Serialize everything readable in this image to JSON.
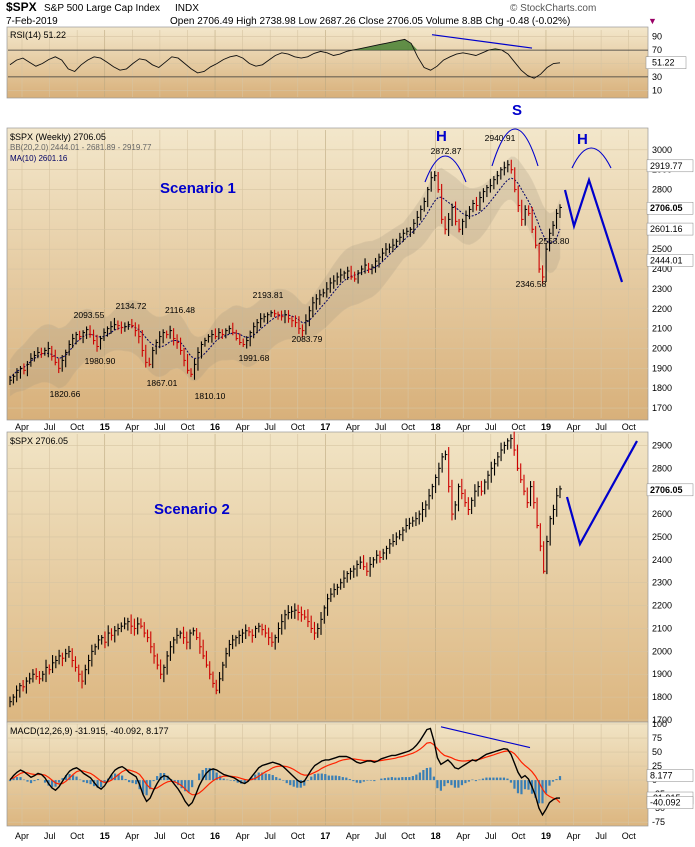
{
  "header": {
    "symbol": "$SPX",
    "name": "S&P 500 Large Cap Index",
    "exchange": "INDX",
    "date": "7-Feb-2019",
    "ohlc_text": "Open 2706.49  High 2738.98  Low 2687.26  Close 2706.05  Volume 8.8B  Chg -0.48 (-0.02%)",
    "brand": "© StockCharts.com"
  },
  "colors": {
    "price_up": "#000000",
    "price_down": "#cc0000",
    "annotation": "#0000cc",
    "bg_top": "#efe2c3",
    "bg_bottom": "#d9b27a",
    "rsi_fill": "#3d7a2a",
    "macd_signal": "#ff2200",
    "histogram": "#3a7fb5"
  },
  "time_axis_labels": [
    "Apr",
    "Jul",
    "Oct",
    "15",
    "Apr",
    "Jul",
    "Oct",
    "16",
    "Apr",
    "Jul",
    "Oct",
    "17",
    "Apr",
    "Jul",
    "Oct",
    "18",
    "Apr",
    "Jul",
    "Oct",
    "19",
    "Apr",
    "Jul",
    "Oct"
  ],
  "chart_data": [
    {
      "type": "line",
      "panel": "rsi",
      "title": "RSI(14) 51.22",
      "ylim": [
        0,
        100
      ],
      "y_ticks": [
        "90",
        "70",
        "50",
        "30",
        "10"
      ],
      "current_value_label": "51.22",
      "series": [
        {
          "name": "RSI(14)",
          "values": [
            48,
            55,
            58,
            52,
            46,
            50,
            56,
            60,
            55,
            42,
            38,
            48,
            55,
            60,
            58,
            52,
            45,
            40,
            42,
            50,
            57,
            55,
            48,
            44,
            52,
            60,
            58,
            50,
            42,
            36,
            38,
            45,
            50,
            56,
            60,
            62,
            58,
            50,
            46,
            48,
            55,
            62,
            66,
            64,
            60,
            58,
            60,
            65,
            68,
            66,
            62,
            64,
            68,
            70,
            72,
            74,
            76,
            78,
            80,
            82,
            84,
            86,
            80,
            60,
            44,
            40,
            46,
            55,
            60,
            64,
            66,
            64,
            62,
            66,
            70,
            72,
            70,
            64,
            52,
            40,
            32,
            28,
            34,
            44,
            50,
            51
          ]
        }
      ]
    },
    {
      "type": "line",
      "panel": "scenario-1",
      "title": "$SPX (Weekly) 2706.05",
      "legend": [
        "$SPX (Weekly) 2706.05",
        "BB(20,2.0) 2444.01 - 2681.89 - 2919.77",
        "MA(10) 2601.16"
      ],
      "ylim": [
        1650,
        3100
      ],
      "y_ticks": [
        "3000",
        "2900",
        "2800",
        "2700",
        "2600",
        "2500",
        "2400",
        "2300",
        "2200",
        "2100",
        "2000",
        "1900",
        "1800",
        "1700"
      ],
      "right_labels": [
        "2919.77",
        "2706.05",
        "2601.16",
        "2444.01"
      ],
      "annotations": [
        {
          "text": "Scenario 1",
          "kind": "title"
        },
        {
          "text": "H",
          "kind": "pattern"
        },
        {
          "text": "S",
          "kind": "pattern"
        },
        {
          "text": "H",
          "kind": "pattern"
        },
        {
          "text": "2872.87",
          "kind": "price"
        },
        {
          "text": "2940.91",
          "kind": "price"
        },
        {
          "text": "2553.80",
          "kind": "price"
        },
        {
          "text": "2346.58",
          "kind": "price"
        },
        {
          "text": "2093.55",
          "kind": "price"
        },
        {
          "text": "2134.72",
          "kind": "price"
        },
        {
          "text": "2116.48",
          "kind": "price"
        },
        {
          "text": "2193.81",
          "kind": "price"
        },
        {
          "text": "1980.90",
          "kind": "price"
        },
        {
          "text": "1820.66",
          "kind": "price"
        },
        {
          "text": "1867.01",
          "kind": "price"
        },
        {
          "text": "1810.10",
          "kind": "price"
        },
        {
          "text": "1991.68",
          "kind": "price"
        },
        {
          "text": "2083.79",
          "kind": "price"
        }
      ],
      "series": [
        {
          "name": "$SPX (Weekly)",
          "values": [
            1840,
            1860,
            1880,
            1900,
            1890,
            1920,
            1950,
            1965,
            1980,
            1975,
            1990,
            2000,
            1960,
            1930,
            1900,
            1940,
            1980,
            2020,
            2050,
            2070,
            2060,
            2080,
            2095,
            2070,
            2040,
            2010,
            2050,
            2080,
            2100,
            2110,
            2120,
            2115,
            2105,
            2110,
            2120,
            2115,
            2090,
            2060,
            1990,
            1930,
            1920,
            1990,
            2030,
            2060,
            2080,
            2070,
            2090,
            2050,
            2030,
            1990,
            1940,
            1890,
            1870,
            1920,
            1980,
            2020,
            2040,
            2060,
            2070,
            2060,
            2080,
            2070,
            2090,
            2100,
            2080,
            2050,
            2030,
            2020,
            2040,
            2080,
            2110,
            2130,
            2150,
            2160,
            2170,
            2180,
            2175,
            2170,
            2160,
            2170,
            2150,
            2140,
            2130,
            2100,
            2090,
            2140,
            2190,
            2230,
            2250,
            2270,
            2280,
            2300,
            2330,
            2340,
            2360,
            2370,
            2380,
            2390,
            2360,
            2350,
            2380,
            2400,
            2420,
            2400,
            2410,
            2440,
            2460,
            2480,
            2500,
            2510,
            2520,
            2540,
            2560,
            2580,
            2590,
            2600,
            2630,
            2660,
            2700,
            2740,
            2800,
            2860,
            2870,
            2800,
            2650,
            2600,
            2650,
            2710,
            2640,
            2600,
            2640,
            2670,
            2700,
            2730,
            2720,
            2760,
            2790,
            2810,
            2820,
            2850,
            2870,
            2900,
            2910,
            2925,
            2900,
            2800,
            2720,
            2650,
            2700,
            2680,
            2600,
            2520,
            2400,
            2360,
            2500,
            2580,
            2620,
            2680,
            2710
          ]
        },
        {
          "name": "MA(10)",
          "values": [
            1850,
            1870,
            1885,
            1895,
            1905,
            1920,
            1935,
            1950,
            1960,
            1970,
            1975,
            1975,
            1970,
            1960,
            1950,
            1955,
            1965,
            1985,
            2010,
            2030,
            2045,
            2060,
            2070,
            2072,
            2068,
            2060,
            2058,
            2060,
            2068,
            2080,
            2092,
            2100,
            2105,
            2108,
            2112,
            2112,
            2105,
            2095,
            2075,
            2055,
            2035,
            2020,
            2010,
            2008,
            2012,
            2020,
            2035,
            2040,
            2040,
            2030,
            2010,
            1985,
            1960,
            1950,
            1950,
            1960,
            1975,
            1995,
            2015,
            2035,
            2050,
            2060,
            2065,
            2072,
            2078,
            2078,
            2072,
            2062,
            2055,
            2058,
            2068,
            2082,
            2098,
            2112,
            2128,
            2142,
            2155,
            2163,
            2167,
            2170,
            2168,
            2163,
            2155,
            2143,
            2130,
            2130,
            2142,
            2160,
            2180,
            2200,
            2220,
            2240,
            2262,
            2284,
            2305,
            2325,
            2342,
            2355,
            2364,
            2370,
            2375,
            2382,
            2390,
            2395,
            2400,
            2410,
            2422,
            2438,
            2455,
            2472,
            2490,
            2508,
            2525,
            2542,
            2560,
            2575,
            2592,
            2612,
            2632,
            2656,
            2684,
            2714,
            2742,
            2760,
            2762,
            2748,
            2735,
            2722,
            2710,
            2695,
            2680,
            2670,
            2665,
            2668,
            2675,
            2685,
            2700,
            2718,
            2740,
            2762,
            2785,
            2808,
            2830,
            2850,
            2858,
            2850,
            2830,
            2800,
            2770,
            2740,
            2705,
            2665,
            2620,
            2575,
            2545,
            2530,
            2535,
            2555,
            2601
          ]
        }
      ]
    },
    {
      "type": "line",
      "panel": "scenario-2",
      "title": "$SPX 2706.05",
      "ylim": [
        1700,
        2950
      ],
      "y_ticks": [
        "2900",
        "2800",
        "2700",
        "2600",
        "2500",
        "2400",
        "2300",
        "2200",
        "2100",
        "2000",
        "1900",
        "1800",
        "1700"
      ],
      "right_labels": [
        "2706.05"
      ],
      "annotations": [
        {
          "text": "Scenario 2",
          "kind": "title"
        }
      ],
      "series": [
        {
          "name": "$SPX",
          "values": [
            1780,
            1800,
            1830,
            1850,
            1845,
            1870,
            1880,
            1900,
            1890,
            1880,
            1900,
            1930,
            1920,
            1950,
            1960,
            1980,
            1970,
            1990,
            2000,
            1960,
            1930,
            1900,
            1870,
            1920,
            1960,
            2000,
            2020,
            2050,
            2060,
            2040,
            2080,
            2070,
            2090,
            2100,
            2110,
            2120,
            2130,
            2110,
            2100,
            2120,
            2110,
            2080,
            2060,
            2020,
            1980,
            1940,
            1900,
            1930,
            1980,
            2020,
            2050,
            2070,
            2080,
            2060,
            2040,
            2080,
            2090,
            2060,
            2020,
            1980,
            1940,
            1900,
            1860,
            1830,
            1880,
            1940,
            1990,
            2030,
            2050,
            2060,
            2070,
            2080,
            2090,
            2085,
            2070,
            2100,
            2110,
            2095,
            2080,
            2060,
            2040,
            2060,
            2100,
            2130,
            2160,
            2170,
            2175,
            2180,
            2170,
            2160,
            2150,
            2130,
            2100,
            2080,
            2100,
            2140,
            2190,
            2230,
            2250,
            2270,
            2280,
            2300,
            2320,
            2340,
            2350,
            2360,
            2380,
            2390,
            2370,
            2350,
            2380,
            2400,
            2420,
            2410,
            2430,
            2450,
            2470,
            2480,
            2500,
            2510,
            2530,
            2550,
            2560,
            2570,
            2580,
            2600,
            2620,
            2640,
            2680,
            2720,
            2760,
            2800,
            2850,
            2860,
            2720,
            2600,
            2640,
            2720,
            2690,
            2650,
            2620,
            2660,
            2700,
            2720,
            2700,
            2740,
            2770,
            2800,
            2820,
            2850,
            2880,
            2900,
            2920,
            2930,
            2880,
            2800,
            2750,
            2700,
            2650,
            2720,
            2650,
            2550,
            2460,
            2350,
            2480,
            2580,
            2620,
            2680,
            2710
          ]
        }
      ]
    },
    {
      "type": "line",
      "panel": "macd",
      "title": "MACD(12,26,9) -31.915, -40.092, 8.177",
      "ylim": [
        -80,
        100
      ],
      "y_ticks": [
        "100",
        "75",
        "50",
        "25",
        "0",
        "-25",
        "-50",
        "-75"
      ],
      "right_labels": [
        "8.177",
        "-31.915",
        "-40.092"
      ],
      "series": [
        {
          "name": "MACD",
          "values": [
            0,
            8,
            14,
            18,
            15,
            10,
            5,
            8,
            12,
            10,
            4,
            -6,
            -14,
            -18,
            -12,
            -2,
            8,
            16,
            20,
            22,
            18,
            12,
            8,
            4,
            -4,
            -12,
            -16,
            -10,
            0,
            10,
            18,
            22,
            24,
            20,
            14,
            10,
            6,
            -8,
            -26,
            -38,
            -32,
            -18,
            -6,
            4,
            8,
            6,
            0,
            -8,
            -16,
            -26,
            -38,
            -46,
            -40,
            -26,
            -10,
            2,
            12,
            18,
            20,
            18,
            14,
            10,
            8,
            6,
            4,
            0,
            -4,
            -6,
            -2,
            6,
            14,
            22,
            26,
            28,
            30,
            32,
            30,
            28,
            24,
            18,
            12,
            6,
            0,
            -4,
            -2,
            8,
            18,
            26,
            30,
            34,
            36,
            36,
            38,
            40,
            42,
            42,
            42,
            40,
            36,
            32,
            30,
            32,
            34,
            34,
            32,
            34,
            38,
            40,
            42,
            44,
            44,
            46,
            48,
            50,
            52,
            56,
            62,
            70,
            80,
            90,
            92,
            70,
            40,
            28,
            32,
            36,
            30,
            22,
            20,
            24,
            28,
            32,
            36,
            34,
            38,
            42,
            46,
            48,
            50,
            52,
            54,
            56,
            55,
            46,
            30,
            14,
            4,
            8,
            2,
            -12,
            -28,
            -50,
            -62,
            -52,
            -40,
            -35,
            -32,
            -32
          ]
        },
        {
          "name": "Signal",
          "values": [
            2,
            4,
            8,
            12,
            14,
            13,
            11,
            10,
            10,
            10,
            9,
            5,
            0,
            -5,
            -7,
            -6,
            -2,
            4,
            10,
            15,
            17,
            16,
            14,
            12,
            8,
            3,
            -2,
            -4,
            -3,
            0,
            5,
            10,
            15,
            18,
            18,
            16,
            14,
            10,
            2,
            -8,
            -14,
            -16,
            -14,
            -10,
            -6,
            -3,
            -2,
            -3,
            -6,
            -10,
            -16,
            -22,
            -26,
            -26,
            -23,
            -18,
            -12,
            -6,
            -1,
            3,
            5,
            7,
            7,
            7,
            6,
            5,
            3,
            1,
            0,
            1,
            3,
            7,
            11,
            15,
            18,
            22,
            24,
            25,
            25,
            24,
            22,
            19,
            15,
            11,
            9,
            9,
            11,
            14,
            17,
            21,
            24,
            27,
            29,
            31,
            34,
            36,
            37,
            38,
            38,
            37,
            36,
            35,
            35,
            35,
            34,
            34,
            35,
            36,
            37,
            38,
            39,
            41,
            42,
            44,
            46,
            48,
            51,
            55,
            60,
            66,
            67,
            63,
            56,
            49,
            44,
            42,
            40,
            37,
            35,
            34,
            34,
            35,
            35,
            36,
            37,
            39,
            41,
            43,
            45,
            47,
            49,
            51,
            52,
            51,
            47,
            40,
            32,
            26,
            21,
            15,
            7,
            -4,
            -16,
            -25,
            -29,
            -32,
            -34,
            -40
          ]
        }
      ]
    }
  ]
}
